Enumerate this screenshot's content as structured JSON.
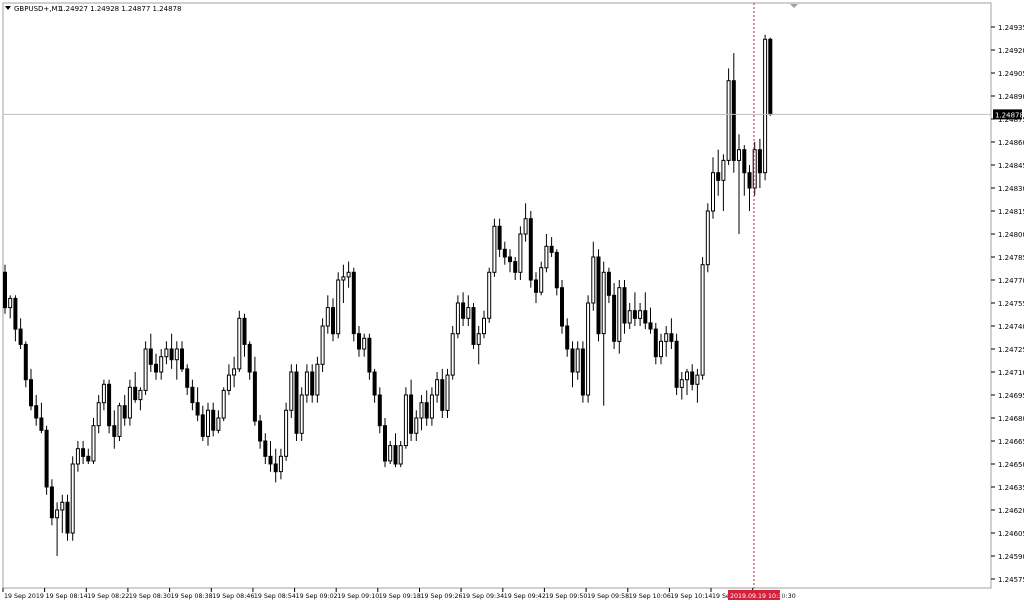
{
  "header": {
    "symbol": "GBPUSD+,M1",
    "ohlc": "1.24927 1.24928 1.24877 1.24878",
    "dropdown_icon": "triangle-down-icon"
  },
  "price_axis": {
    "ticks": [
      "1.24935",
      "1.24920",
      "1.24905",
      "1.24890",
      "1.24875",
      "1.24860",
      "1.24845",
      "1.24830",
      "1.24815",
      "1.24800",
      "1.24785",
      "1.24770",
      "1.24755",
      "1.24740",
      "1.24725",
      "1.24710",
      "1.24695",
      "1.24680",
      "1.24665",
      "1.24650",
      "1.24635",
      "1.24620",
      "1.24605",
      "1.24590",
      "1.24575"
    ],
    "current_price_label": "1.24878"
  },
  "time_axis": {
    "labels": [
      "19 Sep 2019",
      "19 Sep 08:14",
      "19 Sep 08:22",
      "19 Sep 08:30",
      "19 Sep 08:38",
      "19 Sep 08:46",
      "19 Sep 08:54",
      "19 Sep 09:02",
      "19 Sep 09:10",
      "19 Sep 09:18",
      "19 Sep 09:26",
      "19 Sep 09:34",
      "19 Sep 09:42",
      "19 Sep 09:50",
      "19 Sep 09:58",
      "19 Sep 10:06",
      "19 Sep 10:14",
      "19 Sep 10:22",
      "19 Sep 10:30"
    ],
    "highlight_label": "2019.09.19 10:30",
    "highlight_color": "#d6203b"
  },
  "colors": {
    "bull_body": "#ffffff",
    "bear_body": "#000000",
    "wick": "#000000",
    "grid_line": "#c0c0c0",
    "crosshair": "#d6203b"
  },
  "chart_data": {
    "type": "candlestick",
    "title": "GBPUSD+,M1",
    "x_first": "19 Sep 2019 08:03",
    "x_step_minutes": 1,
    "ylim": [
      1.24575,
      1.2495
    ],
    "current_price": 1.24878,
    "candles": [
      [
        1.24775,
        1.2478,
        1.24748,
        1.24752
      ],
      [
        1.24752,
        1.2476,
        1.24745,
        1.24758
      ],
      [
        1.24758,
        1.2476,
        1.2473,
        1.24738
      ],
      [
        1.24738,
        1.24745,
        1.24725,
        1.24728
      ],
      [
        1.24728,
        1.2473,
        1.247,
        1.24705
      ],
      [
        1.24705,
        1.24712,
        1.24685,
        1.24688
      ],
      [
        1.24688,
        1.24695,
        1.24675,
        1.2468
      ],
      [
        1.2468,
        1.2469,
        1.2467,
        1.24672
      ],
      [
        1.24672,
        1.24675,
        1.2463,
        1.24635
      ],
      [
        1.24635,
        1.2464,
        1.2461,
        1.24615
      ],
      [
        1.24615,
        1.24625,
        1.2459,
        1.2462
      ],
      [
        1.2462,
        1.2463,
        1.24605,
        1.24625
      ],
      [
        1.24625,
        1.2463,
        1.246,
        1.24605
      ],
      [
        1.24605,
        1.24655,
        1.246,
        1.2465
      ],
      [
        1.2465,
        1.24665,
        1.24645,
        1.2466
      ],
      [
        1.2466,
        1.24665,
        1.2465,
        1.24655
      ],
      [
        1.24655,
        1.2466,
        1.2465,
        1.24652
      ],
      [
        1.24652,
        1.2468,
        1.2465,
        1.24675
      ],
      [
        1.24675,
        1.24695,
        1.2467,
        1.2469
      ],
      [
        1.2469,
        1.24705,
        1.24685,
        1.24702
      ],
      [
        1.24702,
        1.24705,
        1.2467,
        1.24675
      ],
      [
        1.24675,
        1.24685,
        1.2466,
        1.24668
      ],
      [
        1.24668,
        1.2469,
        1.24665,
        1.24688
      ],
      [
        1.24688,
        1.24695,
        1.24675,
        1.2468
      ],
      [
        1.2468,
        1.24705,
        1.24675,
        1.247
      ],
      [
        1.247,
        1.2471,
        1.2469,
        1.24692
      ],
      [
        1.24692,
        1.247,
        1.24685,
        1.24698
      ],
      [
        1.24698,
        1.2473,
        1.24695,
        1.24725
      ],
      [
        1.24725,
        1.24735,
        1.2471,
        1.24715
      ],
      [
        1.24715,
        1.24722,
        1.24705,
        1.2471
      ],
      [
        1.2471,
        1.24725,
        1.24705,
        1.2472
      ],
      [
        1.2472,
        1.2473,
        1.24715,
        1.24725
      ],
      [
        1.24725,
        1.24735,
        1.24712,
        1.24718
      ],
      [
        1.24718,
        1.2473,
        1.24705,
        1.24725
      ],
      [
        1.24725,
        1.2473,
        1.2471,
        1.24712
      ],
      [
        1.24712,
        1.24715,
        1.24695,
        1.247
      ],
      [
        1.247,
        1.24705,
        1.24685,
        1.2469
      ],
      [
        1.2469,
        1.247,
        1.24678,
        1.24682
      ],
      [
        1.24682,
        1.24688,
        1.24665,
        1.24668
      ],
      [
        1.24668,
        1.2469,
        1.24662,
        1.24685
      ],
      [
        1.24685,
        1.2469,
        1.24668,
        1.24672
      ],
      [
        1.24672,
        1.24685,
        1.2467,
        1.2468
      ],
      [
        1.2468,
        1.247,
        1.24678,
        1.24698
      ],
      [
        1.24698,
        1.24715,
        1.24695,
        1.24708
      ],
      [
        1.24708,
        1.2472,
        1.247,
        1.24712
      ],
      [
        1.24712,
        1.2475,
        1.2471,
        1.24745
      ],
      [
        1.24745,
        1.24748,
        1.2472,
        1.24728
      ],
      [
        1.24728,
        1.2473,
        1.24705,
        1.2471
      ],
      [
        1.2471,
        1.2472,
        1.24675,
        1.24678
      ],
      [
        1.24678,
        1.24682,
        1.2466,
        1.24665
      ],
      [
        1.24665,
        1.2467,
        1.2465,
        1.24655
      ],
      [
        1.24655,
        1.24665,
        1.24645,
        1.2465
      ],
      [
        1.2465,
        1.2466,
        1.24638,
        1.24645
      ],
      [
        1.24645,
        1.2466,
        1.2464,
        1.24655
      ],
      [
        1.24655,
        1.2469,
        1.24652,
        1.24685
      ],
      [
        1.24685,
        1.24715,
        1.2468,
        1.2471
      ],
      [
        1.2471,
        1.24715,
        1.24665,
        1.2467
      ],
      [
        1.2467,
        1.247,
        1.24665,
        1.24695
      ],
      [
        1.24695,
        1.24715,
        1.2469,
        1.2471
      ],
      [
        1.2471,
        1.24715,
        1.2469,
        1.24695
      ],
      [
        1.24695,
        1.2472,
        1.2469,
        1.24715
      ],
      [
        1.24715,
        1.24745,
        1.2471,
        1.2474
      ],
      [
        1.2474,
        1.2476,
        1.24735,
        1.24752
      ],
      [
        1.24752,
        1.24758,
        1.2473,
        1.24735
      ],
      [
        1.24735,
        1.24775,
        1.24732,
        1.2477
      ],
      [
        1.2477,
        1.2478,
        1.24755,
        1.24772
      ],
      [
        1.24772,
        1.24782,
        1.24765,
        1.24775
      ],
      [
        1.24775,
        1.24778,
        1.2473,
        1.24735
      ],
      [
        1.24735,
        1.2474,
        1.2472,
        1.24725
      ],
      [
        1.24725,
        1.24735,
        1.2472,
        1.24732
      ],
      [
        1.24732,
        1.24735,
        1.24705,
        1.2471
      ],
      [
        1.2471,
        1.24712,
        1.2469,
        1.24695
      ],
      [
        1.24695,
        1.247,
        1.2467,
        1.24675
      ],
      [
        1.24675,
        1.2468,
        1.24648,
        1.24652
      ],
      [
        1.24652,
        1.24665,
        1.2465,
        1.24662
      ],
      [
        1.24662,
        1.2467,
        1.24648,
        1.2465
      ],
      [
        1.2465,
        1.24665,
        1.24648,
        1.24662
      ],
      [
        1.24662,
        1.247,
        1.2466,
        1.24695
      ],
      [
        1.24695,
        1.24705,
        1.24665,
        1.2467
      ],
      [
        1.2467,
        1.24685,
        1.24665,
        1.2468
      ],
      [
        1.2468,
        1.24695,
        1.24672,
        1.2469
      ],
      [
        1.2469,
        1.24698,
        1.24675,
        1.2468
      ],
      [
        1.2468,
        1.247,
        1.24675,
        1.24695
      ],
      [
        1.24695,
        1.2471,
        1.2469,
        1.24705
      ],
      [
        1.24705,
        1.24712,
        1.2468,
        1.24685
      ],
      [
        1.24685,
        1.24712,
        1.2468,
        1.24708
      ],
      [
        1.24708,
        1.2474,
        1.24705,
        1.24735
      ],
      [
        1.24735,
        1.2476,
        1.24732,
        1.24755
      ],
      [
        1.24755,
        1.24762,
        1.2474,
        1.24745
      ],
      [
        1.24745,
        1.2476,
        1.2474,
        1.24752
      ],
      [
        1.24752,
        1.24755,
        1.24725,
        1.24728
      ],
      [
        1.24728,
        1.2474,
        1.24715,
        1.24735
      ],
      [
        1.24735,
        1.2475,
        1.24732,
        1.24745
      ],
      [
        1.24745,
        1.24778,
        1.24742,
        1.24775
      ],
      [
        1.24775,
        1.2481,
        1.24772,
        1.24805
      ],
      [
        1.24805,
        1.2481,
        1.24785,
        1.2479
      ],
      [
        1.2479,
        1.24795,
        1.2478,
        1.24785
      ],
      [
        1.24785,
        1.2479,
        1.24775,
        1.24782
      ],
      [
        1.24782,
        1.24785,
        1.2477,
        1.24775
      ],
      [
        1.24775,
        1.24805,
        1.2477,
        1.248
      ],
      [
        1.248,
        1.2482,
        1.24795,
        1.2481
      ],
      [
        1.2481,
        1.24815,
        1.24765,
        1.2477
      ],
      [
        1.2477,
        1.24775,
        1.24755,
        1.24762
      ],
      [
        1.24762,
        1.24782,
        1.2476,
        1.24778
      ],
      [
        1.24778,
        1.248,
        1.24775,
        1.24792
      ],
      [
        1.24792,
        1.24798,
        1.24785,
        1.24788
      ],
      [
        1.24788,
        1.2479,
        1.2476,
        1.24765
      ],
      [
        1.24765,
        1.2477,
        1.24735,
        1.2474
      ],
      [
        1.2474,
        1.24745,
        1.2472,
        1.24725
      ],
      [
        1.24725,
        1.2473,
        1.247,
        1.2471
      ],
      [
        1.2471,
        1.2473,
        1.24705,
        1.24725
      ],
      [
        1.24725,
        1.2473,
        1.2469,
        1.24695
      ],
      [
        1.24695,
        1.2476,
        1.2469,
        1.24755
      ],
      [
        1.24755,
        1.24795,
        1.2475,
        1.24785
      ],
      [
        1.24785,
        1.2479,
        1.2473,
        1.24735
      ],
      [
        1.24735,
        1.24782,
        1.24688,
        1.24775
      ],
      [
        1.24775,
        1.24778,
        1.24755,
        1.2476
      ],
      [
        1.2476,
        1.24768,
        1.24725,
        1.2473
      ],
      [
        1.2473,
        1.2477,
        1.24722,
        1.24765
      ],
      [
        1.24765,
        1.2477,
        1.24735,
        1.24742
      ],
      [
        1.24742,
        1.24755,
        1.24738,
        1.2475
      ],
      [
        1.2475,
        1.24762,
        1.2474,
        1.24745
      ],
      [
        1.24745,
        1.24755,
        1.2474,
        1.2475
      ],
      [
        1.2475,
        1.24762,
        1.24738,
        1.24742
      ],
      [
        1.24742,
        1.24752,
        1.24735,
        1.24738
      ],
      [
        1.24738,
        1.24742,
        1.24715,
        1.2472
      ],
      [
        1.2472,
        1.24735,
        1.24715,
        1.2473
      ],
      [
        1.2473,
        1.2474,
        1.2472,
        1.24735
      ],
      [
        1.24735,
        1.24745,
        1.24725,
        1.2473
      ],
      [
        1.2473,
        1.24735,
        1.24695,
        1.247
      ],
      [
        1.247,
        1.2471,
        1.24692,
        1.24705
      ],
      [
        1.24705,
        1.24712,
        1.24695,
        1.2471
      ],
      [
        1.2471,
        1.24715,
        1.24698,
        1.24702
      ],
      [
        1.24702,
        1.24712,
        1.2469,
        1.24708
      ],
      [
        1.24708,
        1.24785,
        1.24705,
        1.2478
      ],
      [
        1.2478,
        1.2482,
        1.24775,
        1.24815
      ],
      [
        1.24815,
        1.2485,
        1.2481,
        1.2484
      ],
      [
        1.2484,
        1.24855,
        1.24825,
        1.24835
      ],
      [
        1.24835,
        1.24852,
        1.24815,
        1.24848
      ],
      [
        1.24848,
        1.24908,
        1.24845,
        1.249
      ],
      [
        1.249,
        1.24918,
        1.2484,
        1.24848
      ],
      [
        1.24848,
        1.24865,
        1.248,
        1.24855
      ],
      [
        1.24855,
        1.24858,
        1.24825,
        1.2484
      ],
      [
        1.2484,
        1.24845,
        1.24815,
        1.2483
      ],
      [
        1.2483,
        1.2486,
        1.24825,
        1.24855
      ],
      [
        1.24855,
        1.24862,
        1.2483,
        1.2484
      ],
      [
        1.2484,
        1.2493,
        1.24835,
        1.24927
      ],
      [
        1.24927,
        1.24928,
        1.24877,
        1.24878
      ]
    ]
  }
}
